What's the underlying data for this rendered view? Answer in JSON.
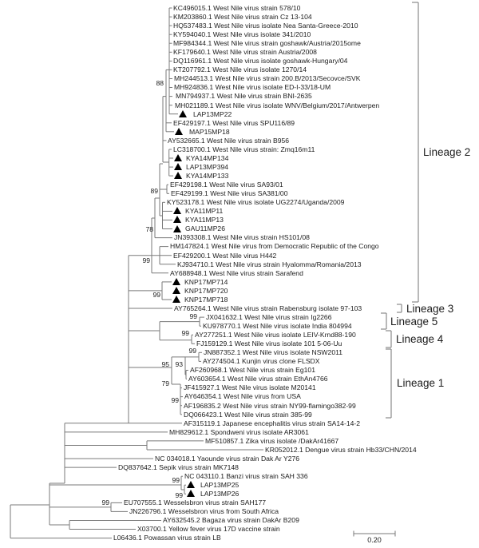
{
  "figure": {
    "type": "phylogenetic-tree",
    "description": "Maximum-likelihood phylogenetic tree of West Nile virus and related flaviviruses",
    "scale_bar_label": "0.20",
    "marker_meaning": "black triangle = study sample",
    "line_color": "#7a7a7a",
    "text_color": "#1c1c1c"
  },
  "taxa": [
    {
      "label": "KC496015.1 West Nile virus strain 578/10",
      "marked": false
    },
    {
      "label": "KM203860.1 West Nile virus strain Cz 13-104",
      "marked": false
    },
    {
      "label": "HQ537483.1 West Nile virus isolate Nea Santa-Greece-2010",
      "marked": false
    },
    {
      "label": "KY594040.1 West Nile virus isolate 341/2010",
      "marked": false
    },
    {
      "label": "MF984344.1 West Nile virus strain goshawk/Austria/2015ome",
      "marked": false
    },
    {
      "label": "KF179640.1 West Nile virus strain Austria/2008",
      "marked": false
    },
    {
      "label": "DQ116961.1 West Nile virus isolate goshawk-Hungary/04",
      "marked": false
    },
    {
      "label": "KT207792.1 West Nile virus isolate 1270/14",
      "marked": false
    },
    {
      "label": "MH244513.1 West Nile virus strain 200.B/2013/Secovce/SVK",
      "marked": false
    },
    {
      "label": "MH924836.1 West Nile virus isolate ED-I-33/18-UM",
      "marked": false
    },
    {
      "label": "MN794937.1 West Nile virus strain BNI-2635",
      "marked": false
    },
    {
      "label": "MH021189.1 West Nile virus isolate WNV/Belgium/2017/Antwerpen",
      "marked": false
    },
    {
      "label": "LAP13MP22",
      "marked": true
    },
    {
      "label": "EF429197.1 West Nile virus SPU116/89",
      "marked": false
    },
    {
      "label": "MAP15MP18",
      "marked": true
    },
    {
      "label": "AY532665.1 West Nile virus strain B956",
      "marked": false
    },
    {
      "label": "LC318700.1 West Nile virus strain: Zmq16m11",
      "marked": false
    },
    {
      "label": "KYA14MP134",
      "marked": true
    },
    {
      "label": "LAP13MP394",
      "marked": true
    },
    {
      "label": "KYA14MP133",
      "marked": true
    },
    {
      "label": "EF429198.1 West Nile virus SA93/01",
      "marked": false
    },
    {
      "label": "EF429199.1 West Nile virus SA381/00",
      "marked": false
    },
    {
      "label": "KY523178.1 West Nile virus isolate UG2274/Uganda/2009",
      "marked": false
    },
    {
      "label": "KYA11MP11",
      "marked": true
    },
    {
      "label": "KYA11MP13",
      "marked": true
    },
    {
      "label": "GAU11MP26",
      "marked": true
    },
    {
      "label": "JN393308.1 West Nile virus strain HS101/08",
      "marked": false
    },
    {
      "label": "HM147824.1 West Nile virus from Democratic Republic of the Congo",
      "marked": false
    },
    {
      "label": "EF429200.1 West Nile virus H442",
      "marked": false
    },
    {
      "label": "KJ934710.1 West Nile virus strain Hyalomma/Romania/2013",
      "marked": false
    },
    {
      "label": "AY688948.1 West Nile virus strain Sarafend",
      "marked": false
    },
    {
      "label": "KNP17MP714",
      "marked": true
    },
    {
      "label": "KNP17MP720",
      "marked": true
    },
    {
      "label": "KNP17MP718",
      "marked": true
    },
    {
      "label": "AY765264.1 West Nile virus strain Rabensburg isolate 97-103",
      "marked": false
    },
    {
      "label": "JX041632.1 West Nile virus strain Ig2266",
      "marked": false
    },
    {
      "label": "KU978770.1 West Nile virus isolate India 804994",
      "marked": false
    },
    {
      "label": "AY277251.1 West Nile virus isolate LEIV-Krnd88-190",
      "marked": false
    },
    {
      "label": "FJ159129.1 West Nile virus isolate 101 5-06-Uu",
      "marked": false
    },
    {
      "label": "JN887352.1 West Nile virus isolate NSW2011",
      "marked": false
    },
    {
      "label": "AY274504.1 Kunjin virus clone FLSDX",
      "marked": false
    },
    {
      "label": "AF260968.1 West Nile virus strain Eg101",
      "marked": false
    },
    {
      "label": "AY603654.1 West Nile virus strain EthAn4766",
      "marked": false
    },
    {
      "label": "JF415927.1 West Nile virus isolate M20141",
      "marked": false
    },
    {
      "label": "AY646354.1 West Nile virus from USA",
      "marked": false
    },
    {
      "label": "AF196835.2 West Nile virus strain NY99-flamingo382-99",
      "marked": false
    },
    {
      "label": "DQ066423.1 West Nile virus strain 385-99",
      "marked": false
    },
    {
      "label": "AF315119.1 Japanese encephalitis virus strain SA14-14-2",
      "marked": false
    },
    {
      "label": "MH829612.1 Spondweni virus isolate AR3061",
      "marked": false
    },
    {
      "label": "MF510857.1 Zika virus isolate /DakAr41667",
      "marked": false
    },
    {
      "label": "KR052012.1 Dengue virus strain Hb33/CHN/2014",
      "marked": false
    },
    {
      "label": "NC 034018.1 Yaounde virus strain Dak Ar Y276",
      "marked": false
    },
    {
      "label": "DQ837642.1 Sepik virus strain MK7148",
      "marked": false
    },
    {
      "label": "NC 043110.1 Banzi virus strain SAH 336",
      "marked": false
    },
    {
      "label": "LAP13MP25",
      "marked": true
    },
    {
      "label": "LAP13MP26",
      "marked": true
    },
    {
      "label": "EU707555.1 Wesselsbron virus strain SAH177",
      "marked": false
    },
    {
      "label": "JN226796.1 Wesselsbron virus from South Africa",
      "marked": false
    },
    {
      "label": "AY632545.2 Bagaza virus strain DakAr B209",
      "marked": false
    },
    {
      "label": "X03700.1 Yellow fever virus 17D vaccine strain",
      "marked": false
    },
    {
      "label": "L06436.1 Powassan virus strain LB",
      "marked": false
    }
  ],
  "bootstraps": [
    "88",
    "89",
    "78",
    "99",
    "99",
    "99",
    "99",
    "99",
    "95",
    "93",
    "79",
    "99",
    "99",
    "99",
    "99"
  ],
  "lineages": [
    "Lineage 2",
    "Lineage 3",
    "Lineage 5",
    "Lineage 4",
    "Lineage 1"
  ]
}
